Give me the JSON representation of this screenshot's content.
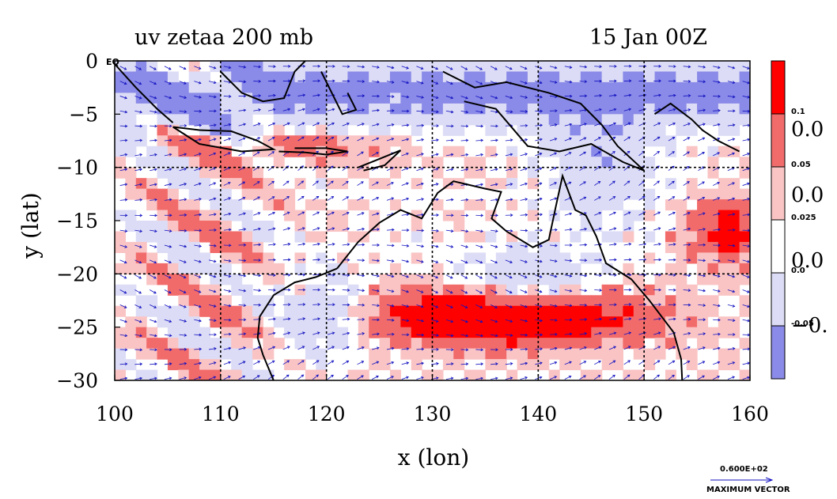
{
  "chart_data": {
    "type": "heatmap",
    "title_left": "uv zetaa 200 mb",
    "title_right": "15 Jan 00Z",
    "xlabel": "x (lon)",
    "ylabel": "y (lat)",
    "xlim": [
      100,
      160
    ],
    "ylim": [
      -30,
      0
    ],
    "x_ticks": [
      100,
      110,
      120,
      130,
      140,
      150,
      160
    ],
    "x_tick_labels": [
      "100",
      "110",
      "120",
      "130",
      "140",
      "150",
      "160"
    ],
    "y_ticks": [
      0,
      -5,
      -10,
      -15,
      -20,
      -25,
      -30
    ],
    "y_tick_labels": [
      "0",
      "−5",
      "−10",
      "−15",
      "−20",
      "−25",
      "−30"
    ],
    "grid": true,
    "grid_lon": [
      110,
      120,
      130,
      140,
      150
    ],
    "grid_lat": [
      -10,
      -20
    ],
    "corner_label": "EQ",
    "colorbar": {
      "levels": [
        {
          "color": "#ff0000",
          "label": "0.1"
        },
        {
          "color": "#f26b6b",
          "label": "0.05"
        },
        {
          "color": "#fac4c4",
          "label": "0.025"
        },
        {
          "color": "#ffffff",
          "label": "0.0"
        },
        {
          "color": "#dcdcf6",
          "label": "-0.05"
        },
        {
          "color": "#8a8ae8",
          "label": ""
        }
      ],
      "cut_labels": [
        "0.0",
        "0.0",
        "0.0",
        "−0."
      ]
    },
    "vector_key": {
      "value_label": "0.600E+02",
      "caption": "MAXIMUM VECTOR"
    }
  },
  "colors": {
    "vector": "#1010c0",
    "contour": "#e00000",
    "coast": "#000000"
  }
}
